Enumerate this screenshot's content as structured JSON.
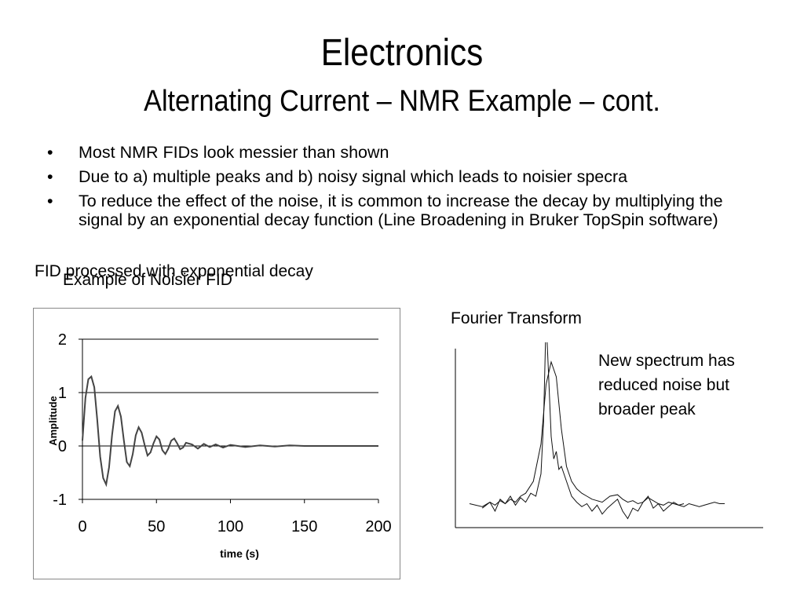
{
  "slide": {
    "title": "Electronics",
    "subtitle": "Alternating Current – NMR Example – cont.",
    "bullet_char": "•",
    "bullets": [
      "Most NMR FIDs look messier than shown",
      "Due to a) multiple peaks and b) noisy signal which leads to noisier specra",
      "To reduce the effect of the noise, it is common to increase the decay by multiplying the signal by an exponential decay function (Line Broadening in Bruker TopSpin software)"
    ],
    "caption_processed": "FID processed with exponential decay",
    "caption_noisier": "Example of Noisier FID",
    "fourier_label": "Fourier Transform",
    "note": "New spectrum has reduced noise but broader peak"
  },
  "chart_data": [
    {
      "type": "line",
      "title": "",
      "xlabel": "time (s)",
      "ylabel": "Amplitude",
      "xlim": [
        0,
        200
      ],
      "ylim": [
        -1,
        2
      ],
      "x_ticks": [
        "0",
        "50",
        "100",
        "150",
        "200"
      ],
      "y_ticks": [
        "2",
        "1",
        "0",
        "-1"
      ],
      "grid": "horizontal",
      "series": [
        {
          "x": [
            0,
            2,
            4,
            6,
            8,
            10,
            12,
            14,
            16,
            18,
            20,
            22,
            24,
            26,
            28,
            30,
            32,
            34,
            36,
            38,
            40,
            42,
            44,
            46,
            48,
            50,
            52,
            54,
            56,
            58,
            60,
            62,
            64,
            66,
            68,
            70,
            74,
            78,
            82,
            86,
            90,
            95,
            100,
            110,
            120,
            130,
            140,
            150,
            160,
            170,
            180,
            190,
            200
          ],
          "y": [
            0.1,
            0.9,
            1.25,
            1.3,
            1.1,
            0.5,
            -0.2,
            -0.6,
            -0.72,
            -0.4,
            0.2,
            0.65,
            0.75,
            0.55,
            0.1,
            -0.3,
            -0.38,
            -0.15,
            0.2,
            0.35,
            0.25,
            0.02,
            -0.18,
            -0.12,
            0.05,
            0.18,
            0.12,
            -0.08,
            -0.15,
            -0.05,
            0.1,
            0.14,
            0.05,
            -0.06,
            -0.03,
            0.06,
            0.03,
            -0.05,
            0.04,
            -0.02,
            0.03,
            -0.03,
            0.02,
            -0.02,
            0.01,
            -0.01,
            0.01,
            0.0,
            0.0,
            0.0,
            0.0,
            0.0,
            0.0
          ]
        }
      ]
    },
    {
      "type": "line",
      "title": "Fourier Transform",
      "xlabel": "",
      "ylabel": "",
      "x_ticks": [],
      "y_ticks": [],
      "grid": "off",
      "series": [
        {
          "x": [
            0,
            5,
            8,
            10,
            12,
            14,
            16,
            18,
            20,
            22,
            25,
            28,
            30,
            32,
            34,
            36,
            38,
            40,
            42,
            44,
            46,
            48,
            50,
            52,
            55,
            58,
            60,
            62,
            64,
            66,
            68,
            70,
            72,
            74,
            76,
            78,
            80,
            82,
            84,
            86,
            88,
            90,
            92,
            94,
            96,
            98,
            100
          ],
          "y": [
            0.05,
            0.03,
            0.06,
            0.04,
            0.07,
            0.05,
            0.08,
            0.06,
            0.1,
            0.12,
            0.2,
            0.45,
            0.85,
            1.0,
            0.9,
            0.55,
            0.3,
            0.2,
            0.15,
            0.12,
            0.1,
            0.08,
            0.07,
            0.06,
            0.1,
            0.11,
            0.08,
            0.06,
            0.07,
            0.05,
            0.06,
            0.09,
            0.07,
            0.05,
            0.04,
            0.06,
            0.05,
            0.04,
            0.03,
            0.05,
            0.04,
            0.03,
            0.04,
            0.05,
            0.06,
            0.05,
            0.05
          ]
        },
        {
          "x": [
            5,
            8,
            10,
            12,
            14,
            16,
            18,
            20,
            22,
            24,
            26,
            28,
            29,
            30,
            31,
            32,
            33,
            34,
            35,
            36,
            38,
            40,
            42,
            44,
            46,
            48,
            50,
            52,
            54,
            56,
            58,
            60,
            62,
            64,
            66,
            68,
            70,
            72,
            74,
            76,
            78,
            80,
            82,
            84
          ],
          "y": [
            0.02,
            0.06,
            0.0,
            0.08,
            0.05,
            0.1,
            0.04,
            0.09,
            0.06,
            0.12,
            0.1,
            0.25,
            0.6,
            1.3,
            0.9,
            0.5,
            0.35,
            0.4,
            0.28,
            0.3,
            0.2,
            0.1,
            0.06,
            0.03,
            0.05,
            0.0,
            0.04,
            -0.02,
            0.02,
            0.05,
            0.08,
            0.0,
            -0.05,
            0.02,
            0.0,
            0.06,
            0.1,
            0.02,
            0.05,
            0.0,
            0.03,
            0.06,
            0.04,
            0.05
          ]
        }
      ]
    }
  ]
}
